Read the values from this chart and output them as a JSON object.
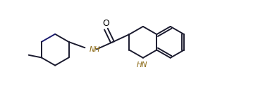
{
  "bg_color": "#ffffff",
  "line_color": "#1a1a2e",
  "nh_color": "#8B6914",
  "lw": 1.4,
  "figsize": [
    3.66,
    1.46
  ],
  "dpi": 100,
  "xlim": [
    0,
    10
  ],
  "ylim": [
    0,
    4
  ]
}
